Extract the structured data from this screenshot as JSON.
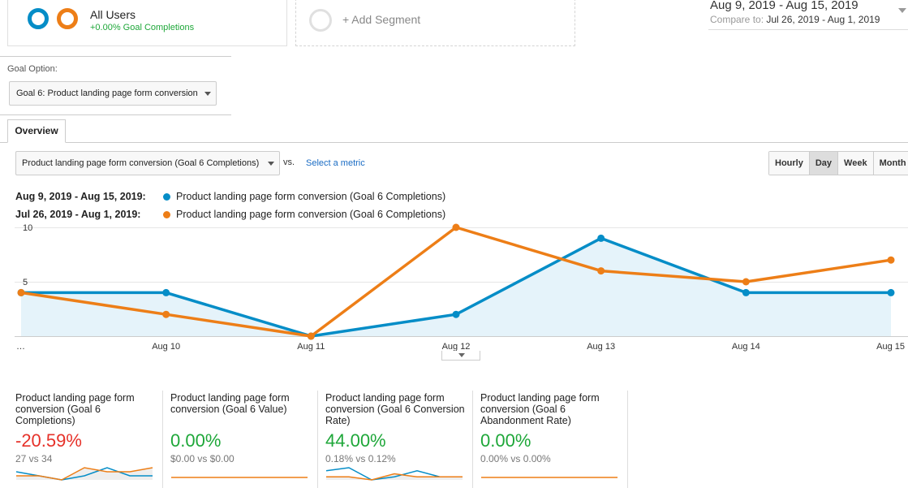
{
  "segments": {
    "all_users": {
      "title": "All Users",
      "subtitle": "+0.00% Goal Completions"
    },
    "add_segment": {
      "label": "+ Add Segment"
    }
  },
  "date_range": {
    "primary": "Aug 9, 2019 - Aug 15, 2019",
    "compare_label": "Compare to:",
    "compare_value": "Jul 26, 2019 - Aug 1, 2019"
  },
  "goal_option": {
    "label": "Goal Option:",
    "selected": "Goal 6: Product landing page form conversion"
  },
  "tabs": [
    {
      "label": "Overview",
      "active": true
    }
  ],
  "metric_selector": {
    "selected": "Product landing page form conversion (Goal 6 Completions)",
    "vs": "vs.",
    "select_metric": "Select a metric"
  },
  "period_buttons": [
    {
      "label": "Hourly",
      "active": false
    },
    {
      "label": "Day",
      "active": true
    },
    {
      "label": "Week",
      "active": false
    },
    {
      "label": "Month",
      "active": false
    }
  ],
  "legend": [
    {
      "range": "Aug 9, 2019 - Aug 15, 2019:",
      "metric": "Product landing page form conversion (Goal 6 Completions)",
      "color": "#058dc7"
    },
    {
      "range": "Jul 26, 2019 - Aug 1, 2019:",
      "metric": "Product landing page form conversion (Goal 6 Completions)",
      "color": "#ed7e17"
    }
  ],
  "chart_data": {
    "type": "line",
    "x": [
      "…",
      "Aug 10",
      "Aug 11",
      "Aug 12",
      "Aug 13",
      "Aug 14",
      "Aug 15"
    ],
    "yticks": [
      10,
      5
    ],
    "ylim": [
      0,
      10
    ],
    "series": [
      {
        "name": "Aug 9, 2019 - Aug 15, 2019",
        "color": "#058dc7",
        "values": [
          4,
          4,
          0,
          2,
          9,
          4,
          4
        ],
        "area": true
      },
      {
        "name": "Jul 26, 2019 - Aug 1, 2019",
        "color": "#ed7e17",
        "values": [
          4,
          2,
          0,
          10,
          6,
          5,
          7
        ],
        "area": false
      }
    ]
  },
  "scorecards": [
    {
      "label": "Product landing page form conversion (Goal 6 Completions)",
      "value": "-20.59%",
      "value_color": "#e63129",
      "compare": "27 vs 34",
      "spark": {
        "blue": [
          2,
          1,
          0,
          1,
          3,
          1,
          1
        ],
        "orange": [
          1,
          1,
          0,
          3,
          2,
          2,
          3
        ],
        "area": true
      }
    },
    {
      "label": "Product landing page form conversion (Goal 6 Value)",
      "value": "0.00%",
      "value_color": "#1ea739",
      "compare": "$0.00 vs $0.00",
      "spark": {
        "blue": [
          0,
          0,
          0,
          0,
          0,
          0,
          0
        ],
        "orange": [
          0,
          0,
          0,
          0,
          0,
          0,
          0
        ],
        "area": false
      }
    },
    {
      "label": "Product landing page form conversion (Goal 6 Conversion Rate)",
      "value": "44.00%",
      "value_color": "#1ea739",
      "compare": "0.18% vs 0.12%",
      "spark": {
        "blue": [
          3,
          4,
          0,
          1,
          3,
          1,
          1
        ],
        "orange": [
          1,
          1,
          0,
          2,
          1,
          1,
          1
        ],
        "area": true
      }
    },
    {
      "label": "Product landing page form conversion (Goal 6 Abandonment Rate)",
      "value": "0.00%",
      "value_color": "#1ea739",
      "compare": "0.00% vs 0.00%",
      "spark": {
        "blue": [
          0,
          0,
          0,
          0,
          0,
          0,
          0
        ],
        "orange": [
          0,
          0,
          0,
          0,
          0,
          0,
          0
        ],
        "area": false
      }
    }
  ]
}
